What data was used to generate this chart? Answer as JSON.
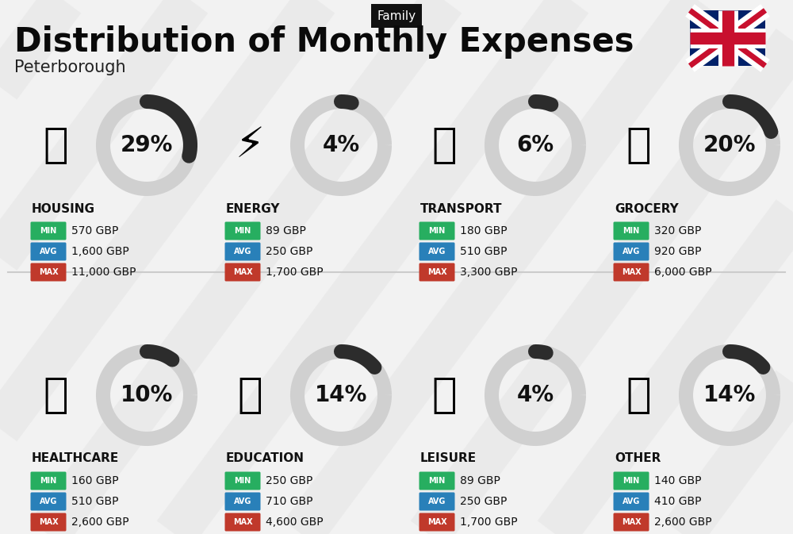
{
  "title": "Distribution of Monthly Expenses",
  "subtitle": "Peterborough",
  "header_label": "Family",
  "background_color": "#f2f2f2",
  "categories": [
    {
      "name": "HOUSING",
      "pct": 29,
      "min": "570 GBP",
      "avg": "1,600 GBP",
      "max": "11,000 GBP",
      "col": 0,
      "row": 0
    },
    {
      "name": "ENERGY",
      "pct": 4,
      "min": "89 GBP",
      "avg": "250 GBP",
      "max": "1,700 GBP",
      "col": 1,
      "row": 0
    },
    {
      "name": "TRANSPORT",
      "pct": 6,
      "min": "180 GBP",
      "avg": "510 GBP",
      "max": "3,300 GBP",
      "col": 2,
      "row": 0
    },
    {
      "name": "GROCERY",
      "pct": 20,
      "min": "320 GBP",
      "avg": "920 GBP",
      "max": "6,000 GBP",
      "col": 3,
      "row": 0
    },
    {
      "name": "HEALTHCARE",
      "pct": 10,
      "min": "160 GBP",
      "avg": "510 GBP",
      "max": "2,600 GBP",
      "col": 0,
      "row": 1
    },
    {
      "name": "EDUCATION",
      "pct": 14,
      "min": "250 GBP",
      "avg": "710 GBP",
      "max": "4,600 GBP",
      "col": 1,
      "row": 1
    },
    {
      "name": "LEISURE",
      "pct": 4,
      "min": "89 GBP",
      "avg": "250 GBP",
      "max": "1,700 GBP",
      "col": 2,
      "row": 1
    },
    {
      "name": "OTHER",
      "pct": 14,
      "min": "140 GBP",
      "avg": "410 GBP",
      "max": "2,600 GBP",
      "col": 3,
      "row": 1
    }
  ],
  "min_color": "#27ae60",
  "avg_color": "#2980b9",
  "max_color": "#c0392b",
  "arc_dark": "#2c2c2c",
  "arc_light": "#d0d0d0",
  "title_fontsize": 30,
  "subtitle_fontsize": 15,
  "cat_name_fontsize": 11,
  "pct_fontsize": 20,
  "badge_fontsize": 7,
  "value_fontsize": 10
}
